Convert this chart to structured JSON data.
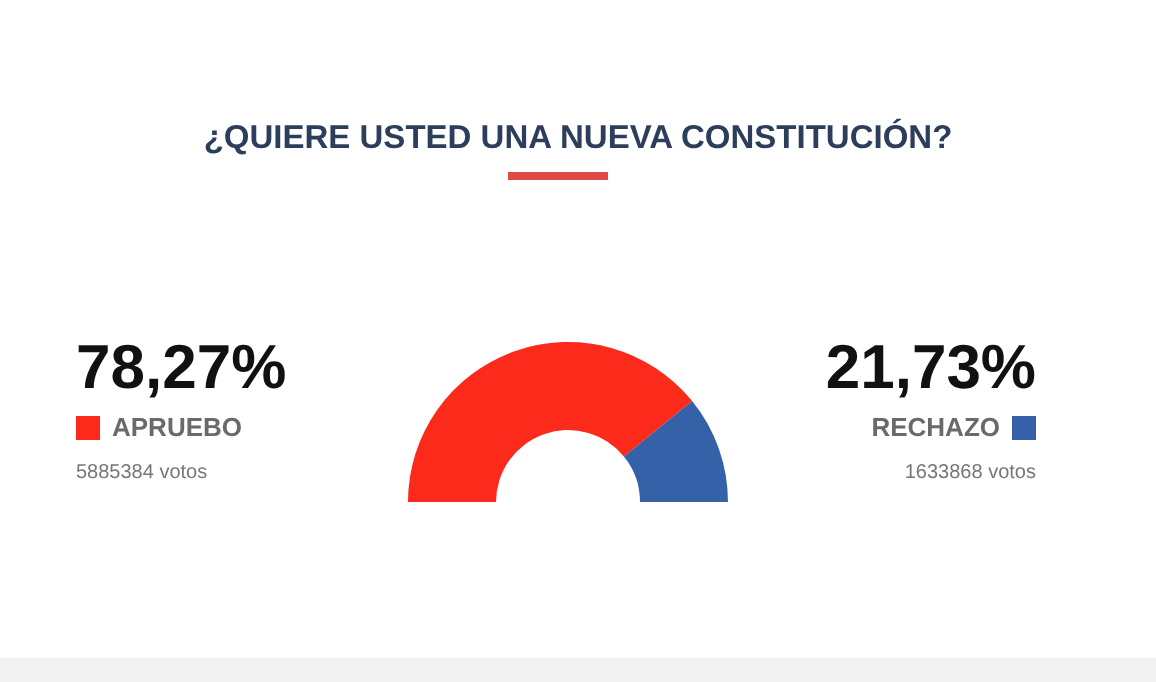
{
  "chart_data": {
    "type": "donut",
    "title": "¿QUIERE USTED UNA NUEVA CONSTITUCIÓN?",
    "categories": [
      "APRUEBO",
      "RECHAZO"
    ],
    "values": [
      78.27,
      21.73
    ],
    "colors": [
      "#fb2a1a",
      "#3561a8"
    ],
    "value_labels": [
      "78,27%",
      "21,73%"
    ],
    "annotations": [
      "5885384 votos",
      "1633868 votos"
    ]
  }
}
